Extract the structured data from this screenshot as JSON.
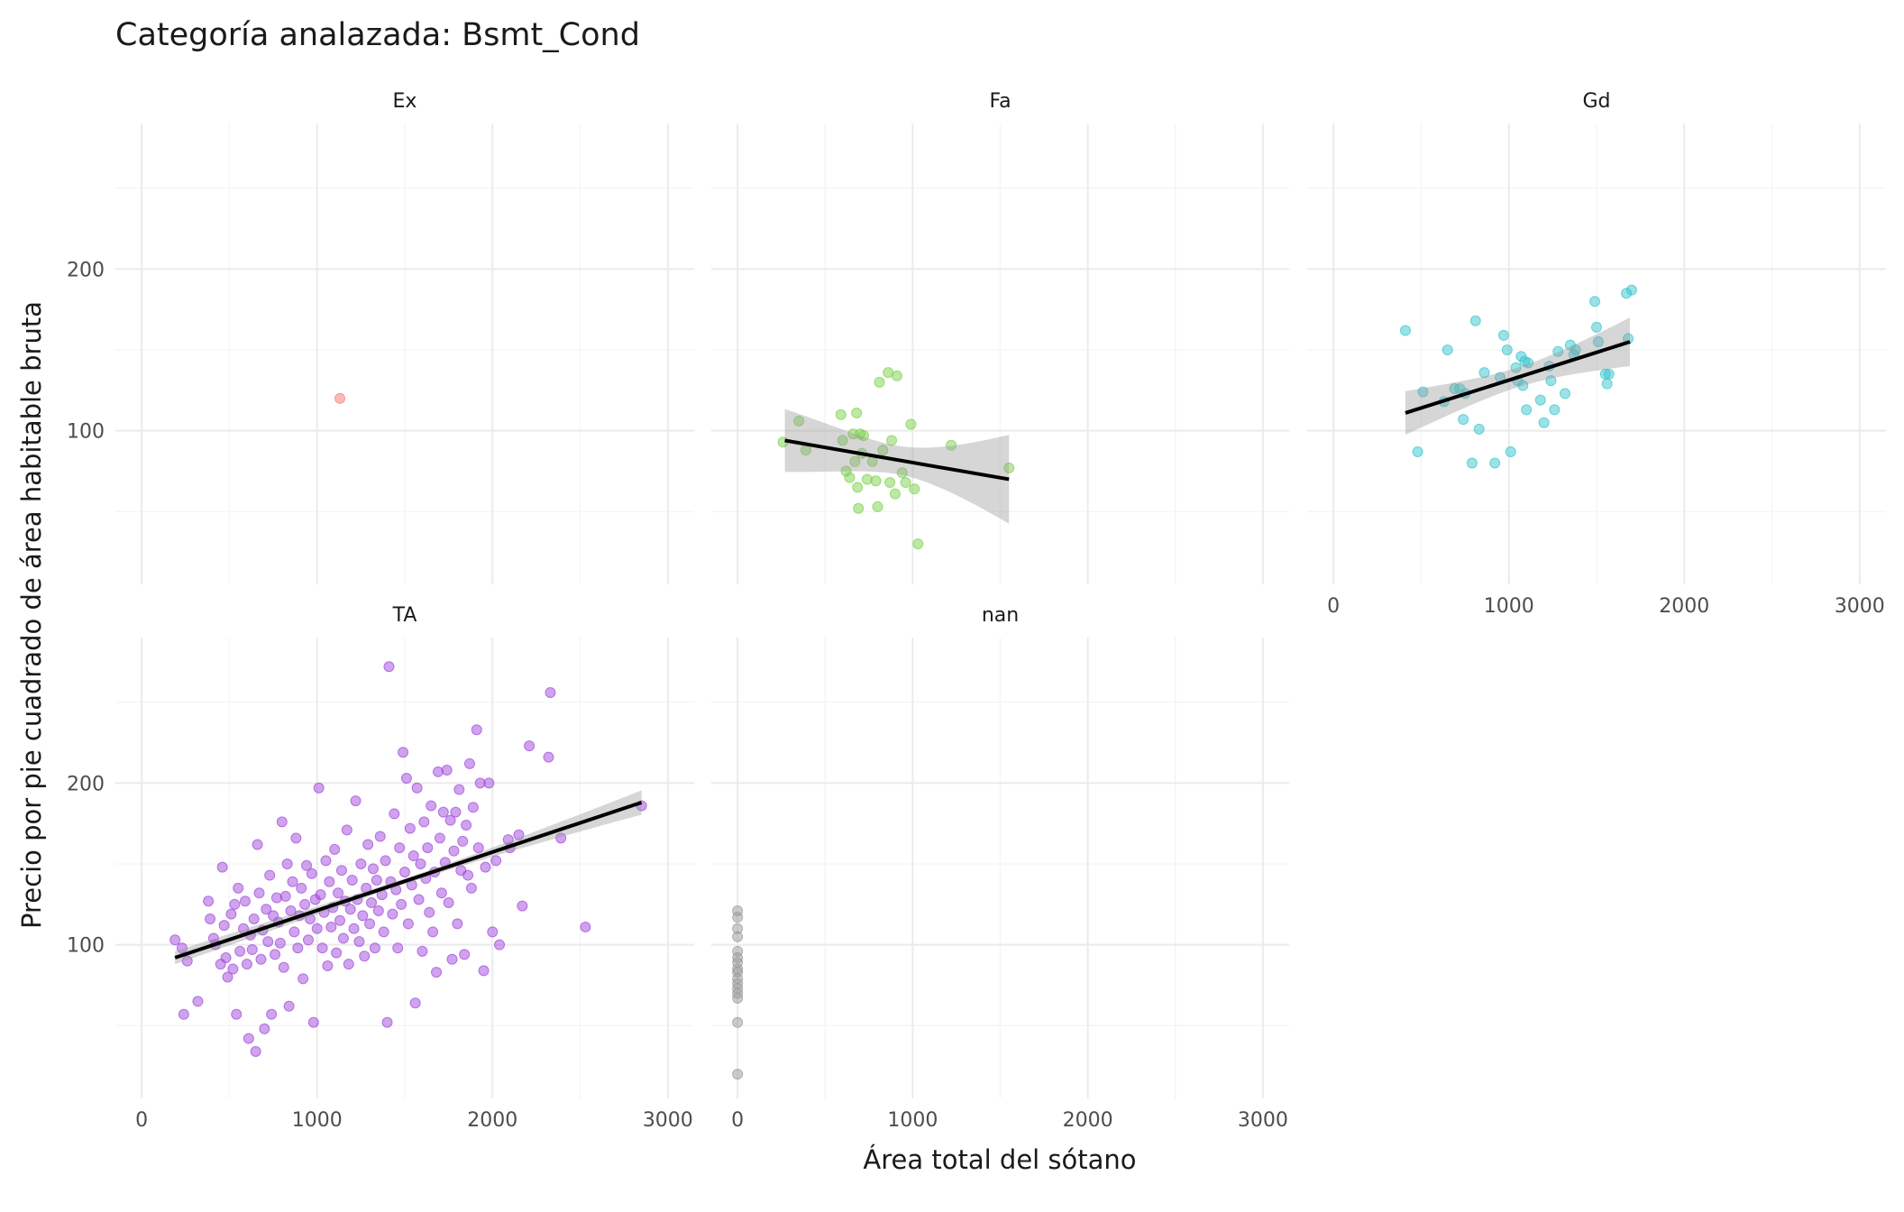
{
  "chart_data": {
    "type": "scatter",
    "title": "Categoría analazada: Bsmt_Cond",
    "xlabel": "Área total del sótano",
    "ylabel": "Precio por pie cuadrado de área habitable bruta",
    "xlim": [
      -150,
      3150
    ],
    "ylim": [
      5,
      290
    ],
    "x_ticks": [
      0,
      1000,
      2000,
      3000
    ],
    "y_ticks": [
      100,
      200
    ],
    "grid": true,
    "legend": "none",
    "panels": [
      {
        "name": "Ex",
        "color": "#F8766D",
        "points": [
          [
            1130,
            120
          ]
        ],
        "fit": null
      },
      {
        "name": "Fa",
        "color": "#7CD14B",
        "points": [
          [
            260,
            93
          ],
          [
            350,
            106
          ],
          [
            390,
            88
          ],
          [
            590,
            110
          ],
          [
            600,
            94
          ],
          [
            620,
            75
          ],
          [
            640,
            71
          ],
          [
            660,
            98
          ],
          [
            670,
            81
          ],
          [
            680,
            111
          ],
          [
            685,
            65
          ],
          [
            690,
            52
          ],
          [
            700,
            98
          ],
          [
            710,
            86
          ],
          [
            720,
            97
          ],
          [
            740,
            70
          ],
          [
            770,
            81
          ],
          [
            790,
            69
          ],
          [
            800,
            53
          ],
          [
            810,
            130
          ],
          [
            830,
            88
          ],
          [
            860,
            136
          ],
          [
            870,
            68
          ],
          [
            880,
            94
          ],
          [
            900,
            61
          ],
          [
            910,
            134
          ],
          [
            940,
            74
          ],
          [
            960,
            68
          ],
          [
            990,
            104
          ],
          [
            1010,
            64
          ],
          [
            1030,
            30
          ],
          [
            1220,
            91
          ],
          [
            1550,
            77
          ]
        ],
        "fit": {
          "x": [
            270,
            1550
          ],
          "y": [
            94,
            70
          ],
          "lo": [
            75,
            43
          ],
          "hi": [
            114,
            98
          ]
        }
      },
      {
        "name": "Gd",
        "color": "#38C6CE",
        "points": [
          [
            410,
            162
          ],
          [
            480,
            87
          ],
          [
            510,
            124
          ],
          [
            630,
            118
          ],
          [
            650,
            150
          ],
          [
            690,
            126
          ],
          [
            720,
            126
          ],
          [
            740,
            107
          ],
          [
            750,
            123
          ],
          [
            790,
            80
          ],
          [
            810,
            168
          ],
          [
            830,
            101
          ],
          [
            860,
            136
          ],
          [
            920,
            80
          ],
          [
            950,
            133
          ],
          [
            970,
            159
          ],
          [
            990,
            150
          ],
          [
            1010,
            87
          ],
          [
            1040,
            139
          ],
          [
            1050,
            131
          ],
          [
            1070,
            146
          ],
          [
            1080,
            128
          ],
          [
            1090,
            143
          ],
          [
            1100,
            113
          ],
          [
            1110,
            142
          ],
          [
            1180,
            119
          ],
          [
            1200,
            105
          ],
          [
            1230,
            140
          ],
          [
            1240,
            131
          ],
          [
            1260,
            113
          ],
          [
            1280,
            149
          ],
          [
            1320,
            123
          ],
          [
            1350,
            153
          ],
          [
            1370,
            147
          ],
          [
            1380,
            150
          ],
          [
            1490,
            180
          ],
          [
            1500,
            164
          ],
          [
            1510,
            155
          ],
          [
            1550,
            135
          ],
          [
            1560,
            129
          ],
          [
            1570,
            135
          ],
          [
            1670,
            185
          ],
          [
            1680,
            157
          ],
          [
            1700,
            187
          ]
        ],
        "fit": {
          "x": [
            410,
            1690
          ],
          "y": [
            111,
            155
          ],
          "lo": [
            98,
            140
          ],
          "hi": [
            125,
            170
          ]
        }
      },
      {
        "name": "TA",
        "color": "#9F48DB",
        "points": [
          [
            190,
            103
          ],
          [
            230,
            98
          ],
          [
            240,
            57
          ],
          [
            260,
            90
          ],
          [
            320,
            65
          ],
          [
            380,
            127
          ],
          [
            390,
            116
          ],
          [
            410,
            104
          ],
          [
            420,
            100
          ],
          [
            450,
            88
          ],
          [
            460,
            148
          ],
          [
            470,
            112
          ],
          [
            480,
            92
          ],
          [
            490,
            80
          ],
          [
            510,
            119
          ],
          [
            520,
            85
          ],
          [
            530,
            125
          ],
          [
            540,
            57
          ],
          [
            550,
            135
          ],
          [
            560,
            96
          ],
          [
            580,
            110
          ],
          [
            590,
            127
          ],
          [
            600,
            88
          ],
          [
            610,
            42
          ],
          [
            620,
            106
          ],
          [
            630,
            97
          ],
          [
            640,
            116
          ],
          [
            650,
            34
          ],
          [
            660,
            162
          ],
          [
            670,
            132
          ],
          [
            680,
            91
          ],
          [
            690,
            109
          ],
          [
            700,
            48
          ],
          [
            710,
            122
          ],
          [
            720,
            102
          ],
          [
            730,
            143
          ],
          [
            740,
            57
          ],
          [
            750,
            118
          ],
          [
            760,
            94
          ],
          [
            770,
            129
          ],
          [
            780,
            114
          ],
          [
            790,
            101
          ],
          [
            800,
            176
          ],
          [
            810,
            86
          ],
          [
            820,
            130
          ],
          [
            830,
            150
          ],
          [
            840,
            62
          ],
          [
            850,
            121
          ],
          [
            860,
            139
          ],
          [
            870,
            108
          ],
          [
            880,
            166
          ],
          [
            890,
            98
          ],
          [
            900,
            118
          ],
          [
            910,
            135
          ],
          [
            920,
            79
          ],
          [
            930,
            125
          ],
          [
            940,
            149
          ],
          [
            950,
            103
          ],
          [
            960,
            116
          ],
          [
            970,
            144
          ],
          [
            980,
            52
          ],
          [
            990,
            128
          ],
          [
            1000,
            110
          ],
          [
            1010,
            197
          ],
          [
            1020,
            131
          ],
          [
            1030,
            98
          ],
          [
            1040,
            120
          ],
          [
            1050,
            152
          ],
          [
            1060,
            87
          ],
          [
            1070,
            139
          ],
          [
            1080,
            111
          ],
          [
            1090,
            123
          ],
          [
            1100,
            159
          ],
          [
            1110,
            95
          ],
          [
            1120,
            132
          ],
          [
            1130,
            115
          ],
          [
            1140,
            146
          ],
          [
            1150,
            104
          ],
          [
            1160,
            127
          ],
          [
            1170,
            171
          ],
          [
            1180,
            88
          ],
          [
            1190,
            122
          ],
          [
            1200,
            140
          ],
          [
            1210,
            110
          ],
          [
            1220,
            189
          ],
          [
            1230,
            128
          ],
          [
            1240,
            102
          ],
          [
            1250,
            150
          ],
          [
            1260,
            118
          ],
          [
            1270,
            93
          ],
          [
            1280,
            135
          ],
          [
            1290,
            162
          ],
          [
            1300,
            113
          ],
          [
            1310,
            126
          ],
          [
            1320,
            147
          ],
          [
            1330,
            98
          ],
          [
            1340,
            140
          ],
          [
            1350,
            121
          ],
          [
            1360,
            167
          ],
          [
            1370,
            131
          ],
          [
            1380,
            108
          ],
          [
            1390,
            152
          ],
          [
            1400,
            52
          ],
          [
            1410,
            272
          ],
          [
            1420,
            139
          ],
          [
            1430,
            119
          ],
          [
            1440,
            181
          ],
          [
            1450,
            134
          ],
          [
            1460,
            98
          ],
          [
            1470,
            160
          ],
          [
            1480,
            125
          ],
          [
            1490,
            219
          ],
          [
            1500,
            145
          ],
          [
            1510,
            203
          ],
          [
            1520,
            113
          ],
          [
            1530,
            172
          ],
          [
            1540,
            137
          ],
          [
            1550,
            155
          ],
          [
            1560,
            64
          ],
          [
            1570,
            197
          ],
          [
            1580,
            128
          ],
          [
            1590,
            150
          ],
          [
            1600,
            96
          ],
          [
            1610,
            176
          ],
          [
            1620,
            141
          ],
          [
            1630,
            160
          ],
          [
            1640,
            120
          ],
          [
            1650,
            186
          ],
          [
            1660,
            108
          ],
          [
            1670,
            145
          ],
          [
            1680,
            83
          ],
          [
            1690,
            207
          ],
          [
            1700,
            166
          ],
          [
            1710,
            132
          ],
          [
            1720,
            182
          ],
          [
            1730,
            151
          ],
          [
            1740,
            208
          ],
          [
            1750,
            126
          ],
          [
            1760,
            177
          ],
          [
            1770,
            91
          ],
          [
            1780,
            158
          ],
          [
            1790,
            182
          ],
          [
            1800,
            113
          ],
          [
            1810,
            196
          ],
          [
            1820,
            146
          ],
          [
            1830,
            164
          ],
          [
            1840,
            94
          ],
          [
            1850,
            174
          ],
          [
            1860,
            143
          ],
          [
            1870,
            212
          ],
          [
            1880,
            135
          ],
          [
            1890,
            185
          ],
          [
            1910,
            233
          ],
          [
            1920,
            160
          ],
          [
            1930,
            200
          ],
          [
            1950,
            84
          ],
          [
            1960,
            148
          ],
          [
            1980,
            200
          ],
          [
            2000,
            108
          ],
          [
            2020,
            152
          ],
          [
            2040,
            100
          ],
          [
            2090,
            165
          ],
          [
            2100,
            160
          ],
          [
            2150,
            168
          ],
          [
            2170,
            124
          ],
          [
            2210,
            223
          ],
          [
            2320,
            216
          ],
          [
            2330,
            256
          ],
          [
            2390,
            166
          ],
          [
            2530,
            111
          ],
          [
            2850,
            186
          ]
        ],
        "fit": {
          "x": [
            190,
            2850
          ],
          "y": [
            92,
            188
          ],
          "lo": [
            88,
            181
          ],
          "hi": [
            96,
            196
          ]
        }
      },
      {
        "name": "nan",
        "color": "#999999",
        "points": [
          [
            0,
            121
          ],
          [
            0,
            117
          ],
          [
            0,
            110
          ],
          [
            0,
            105
          ],
          [
            0,
            96
          ],
          [
            0,
            92
          ],
          [
            0,
            89
          ],
          [
            0,
            85
          ],
          [
            0,
            83
          ],
          [
            0,
            79
          ],
          [
            0,
            76
          ],
          [
            0,
            73
          ],
          [
            0,
            70
          ],
          [
            0,
            67
          ],
          [
            0,
            52
          ],
          [
            0,
            20
          ]
        ],
        "fit": null
      }
    ]
  }
}
